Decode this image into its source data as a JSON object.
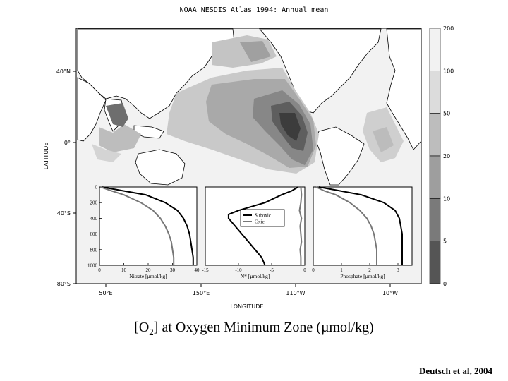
{
  "map_title": "NOAA NESDIS Atlas 1994: Annual mean",
  "axes": {
    "ylabel": "LATITUDE",
    "xlabel": "LONGITUDE",
    "lat_ticks": [
      "40°N",
      "0°",
      "40°S",
      "80°S"
    ],
    "lon_ticks": [
      "50°E",
      "150°E",
      "110°W",
      "10°W"
    ]
  },
  "colorbar": {
    "levels": [
      "200",
      "100",
      "50",
      "20",
      "10",
      "5",
      "0"
    ],
    "colors": [
      "#f2f2f2",
      "#dcdcdc",
      "#bdbdbd",
      "#9e9e9e",
      "#7a7a7a",
      "#555555",
      "#2e2e2e"
    ]
  },
  "chart_data": [
    {
      "type": "line",
      "xlabel": "Nitrate [µmol/kg]",
      "xticks": [
        "0",
        "10",
        "20",
        "30",
        "40"
      ],
      "xlim": [
        0,
        40
      ],
      "yticks": [
        "0",
        "200",
        "400",
        "600",
        "800",
        "1000"
      ],
      "ylim": [
        1000,
        0
      ],
      "series": [
        {
          "color": "#000000",
          "depth": [
            0,
            40,
            100,
            200,
            300,
            400,
            500,
            600,
            700,
            800,
            900,
            1000
          ],
          "values": [
            1,
            8,
            19,
            27,
            32,
            34.5,
            36,
            37,
            37.5,
            38,
            38.5,
            38.5
          ]
        },
        {
          "color": "#777777",
          "depth": [
            0,
            50,
            100,
            200,
            300,
            400,
            500,
            600,
            700,
            800,
            900,
            1000
          ],
          "values": [
            0.5,
            5,
            10,
            17,
            22,
            25,
            27,
            28.5,
            29.5,
            30,
            30.5,
            30.5
          ]
        }
      ]
    },
    {
      "type": "line",
      "xlabel": "N* [µmol/kg]",
      "xticks": [
        "-15",
        "-10",
        "-5",
        "0"
      ],
      "xlim": [
        -15,
        0
      ],
      "yticks": [],
      "ylim": [
        1000,
        0
      ],
      "legend": [
        "Suboxic",
        "Oxic"
      ],
      "series": [
        {
          "name": "Suboxic",
          "color": "#000000",
          "depth": [
            0,
            50,
            100,
            200,
            300,
            350,
            400,
            500,
            600,
            700,
            800,
            900,
            1000
          ],
          "values": [
            -1,
            -2,
            -3.5,
            -6,
            -10,
            -11.5,
            -11.5,
            -10.5,
            -9.5,
            -8.5,
            -7.5,
            -6.5,
            -6
          ]
        },
        {
          "name": "Oxic",
          "color": "#777777",
          "depth": [
            0,
            100,
            200,
            300,
            400,
            500,
            600,
            700,
            800,
            900,
            1000
          ],
          "values": [
            -0.6,
            -0.5,
            -0.6,
            -0.8,
            -0.5,
            -0.7,
            -0.6,
            -0.5,
            -0.7,
            -0.6,
            -0.6
          ]
        }
      ]
    },
    {
      "type": "line",
      "xlabel": "Phosphate [µmol/kg]",
      "xticks": [
        "0",
        "1",
        "2",
        "3"
      ],
      "xlim": [
        0,
        3.5
      ],
      "yticks": [],
      "ylim": [
        1000,
        0
      ],
      "series": [
        {
          "color": "#000000",
          "depth": [
            0,
            40,
            100,
            200,
            300,
            400,
            500,
            600,
            700,
            800,
            900,
            1000
          ],
          "values": [
            0.2,
            0.8,
            1.7,
            2.5,
            2.9,
            3.05,
            3.1,
            3.15,
            3.15,
            3.15,
            3.15,
            3.15
          ]
        },
        {
          "color": "#777777",
          "depth": [
            0,
            50,
            100,
            200,
            300,
            400,
            500,
            600,
            700,
            800,
            900,
            1000
          ],
          "values": [
            0.1,
            0.4,
            0.8,
            1.3,
            1.65,
            1.9,
            2.05,
            2.15,
            2.2,
            2.25,
            2.25,
            2.25
          ]
        }
      ]
    }
  ],
  "caption": {
    "prefix": "[O",
    "sub": "2",
    "suffix": "] at Oxygen Minimum Zone (µmol/kg)"
  },
  "credit": "Deutsch et al, 2004"
}
